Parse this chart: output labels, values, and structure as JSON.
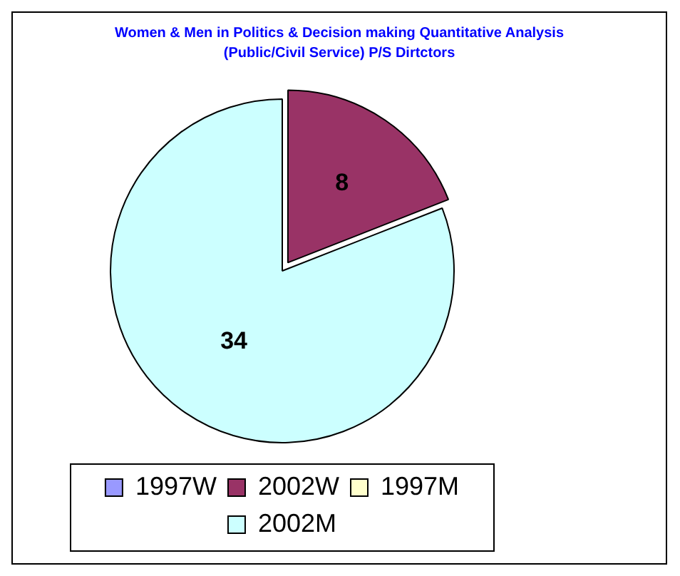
{
  "chart_data": {
    "type": "pie",
    "title": "Women & Men in Politics & Decision making Quantitative Analysis (Public/Civil Service) P/S Dirtctors",
    "categories": [
      "1997W",
      "2002W",
      "1997M",
      "2002M"
    ],
    "values": [
      0,
      8,
      0,
      34
    ],
    "colors": [
      "#9999ff",
      "#993366",
      "#ffffcc",
      "#ccffff"
    ],
    "data_labels": true,
    "legend": "bottom"
  }
}
